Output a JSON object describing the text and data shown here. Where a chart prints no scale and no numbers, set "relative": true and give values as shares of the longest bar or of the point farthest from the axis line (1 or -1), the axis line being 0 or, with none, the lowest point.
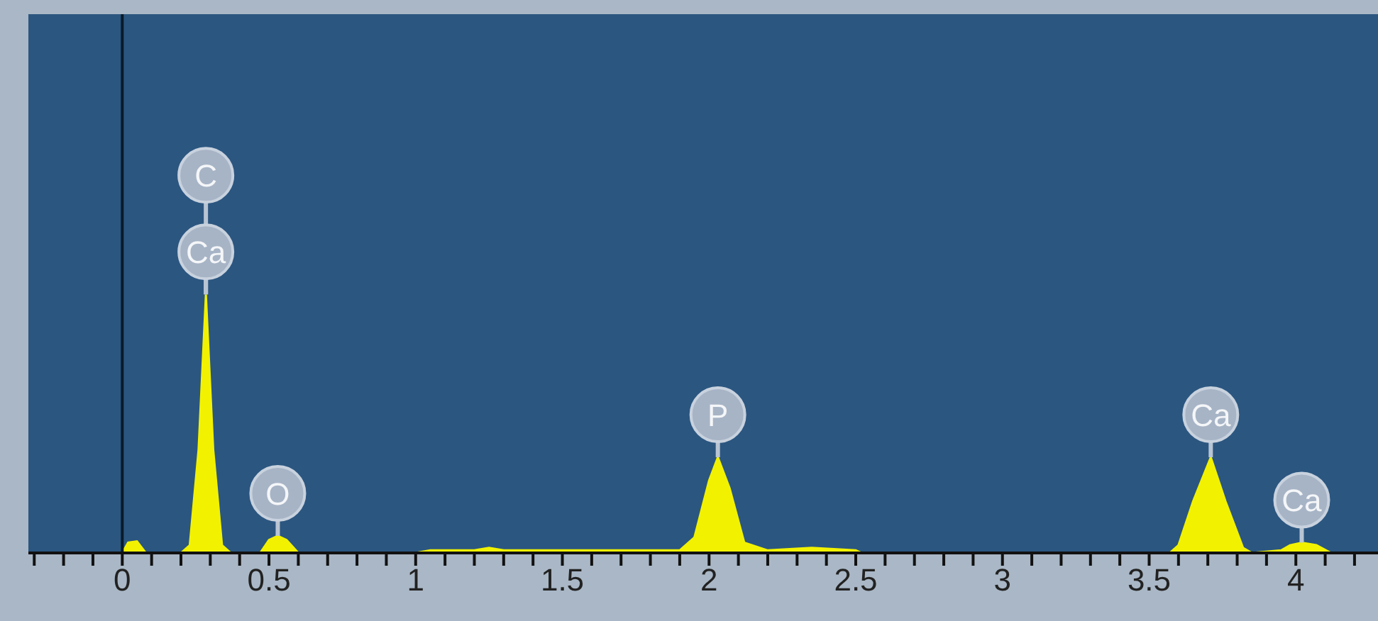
{
  "chart_data": {
    "type": "area",
    "relative": true,
    "color": "#f2f200",
    "x": [
      -0.32,
      0.0,
      0.02,
      0.05,
      0.08,
      0.2,
      0.23,
      0.26,
      0.285,
      0.31,
      0.34,
      0.37,
      0.47,
      0.5,
      0.53,
      0.56,
      0.6,
      1.0,
      1.05,
      1.2,
      1.25,
      1.3,
      1.9,
      1.95,
      2.0,
      2.03,
      2.07,
      2.12,
      2.2,
      2.35,
      2.5,
      2.52,
      3.57,
      3.6,
      3.65,
      3.71,
      3.76,
      3.82,
      3.85,
      3.95,
      3.98,
      4.02,
      4.07,
      4.12,
      4.28
    ],
    "values": [
      0,
      0,
      0.04,
      0.045,
      0,
      0,
      0.03,
      0.4,
      1,
      0.4,
      0.03,
      0,
      0,
      0.05,
      0.066,
      0.05,
      0,
      0,
      0.01,
      0.01,
      0.02,
      0.01,
      0.01,
      0.06,
      0.28,
      0.37,
      0.25,
      0.04,
      0.01,
      0.02,
      0.01,
      0,
      0,
      0.03,
      0.2,
      0.37,
      0.2,
      0.02,
      0,
      0.01,
      0.03,
      0.04,
      0.03,
      0,
      0
    ],
    "xlim": [
      -0.32,
      4.28
    ],
    "xticks": [
      {
        "value": -0.3,
        "label": null
      },
      {
        "value": -0.2,
        "label": null
      },
      {
        "value": -0.1,
        "label": null
      },
      0,
      {
        "value": 0.1,
        "label": null
      },
      {
        "value": 0.2,
        "label": null
      },
      {
        "value": 0.3,
        "label": null
      },
      {
        "value": 0.4,
        "label": null
      },
      0.5,
      {
        "value": 0.6,
        "label": null
      },
      {
        "value": 0.7,
        "label": null
      },
      {
        "value": 0.8,
        "label": null
      },
      {
        "value": 0.9,
        "label": null
      },
      1,
      {
        "value": 1.1,
        "label": null
      },
      {
        "value": 1.2,
        "label": null
      },
      {
        "value": 1.3,
        "label": null
      },
      {
        "value": 1.4,
        "label": null
      },
      1.5,
      {
        "value": 1.6,
        "label": null
      },
      {
        "value": 1.7,
        "label": null
      },
      {
        "value": 1.8,
        "label": null
      },
      {
        "value": 1.9,
        "label": null
      },
      2,
      {
        "value": 2.1,
        "label": null
      },
      {
        "value": 2.2,
        "label": null
      },
      {
        "value": 2.3,
        "label": null
      },
      {
        "value": 2.4,
        "label": null
      },
      2.5,
      {
        "value": 2.6,
        "label": null
      },
      {
        "value": 2.7,
        "label": null
      },
      {
        "value": 2.8,
        "label": null
      },
      {
        "value": 2.9,
        "label": null
      },
      3,
      {
        "value": 3.1,
        "label": null
      },
      {
        "value": 3.2,
        "label": null
      },
      {
        "value": 3.3,
        "label": null
      },
      {
        "value": 3.4,
        "label": null
      },
      3.5,
      {
        "value": 3.6,
        "label": null
      },
      {
        "value": 3.7,
        "label": null
      },
      {
        "value": 3.8,
        "label": null
      },
      {
        "value": 3.9,
        "label": null
      },
      4,
      {
        "value": 4.1,
        "label": null
      },
      {
        "value": 4.2,
        "label": null
      }
    ],
    "ref_lines": [
      {
        "axis": "x",
        "value": 0,
        "color": "#0a1a2a"
      }
    ],
    "annotations": [
      {
        "text": "C",
        "x": 0.285,
        "y": 1
      },
      {
        "text": "Ca",
        "x": 0.285,
        "y": 1
      },
      {
        "text": "O",
        "x": 0.53,
        "y": 0.066
      },
      {
        "text": "P",
        "x": 2.03,
        "y": 0.37
      },
      {
        "text": "Ca",
        "x": 3.71,
        "y": 0.37
      },
      {
        "text": "Ca",
        "x": 4.02,
        "y": 0.04
      }
    ]
  }
}
